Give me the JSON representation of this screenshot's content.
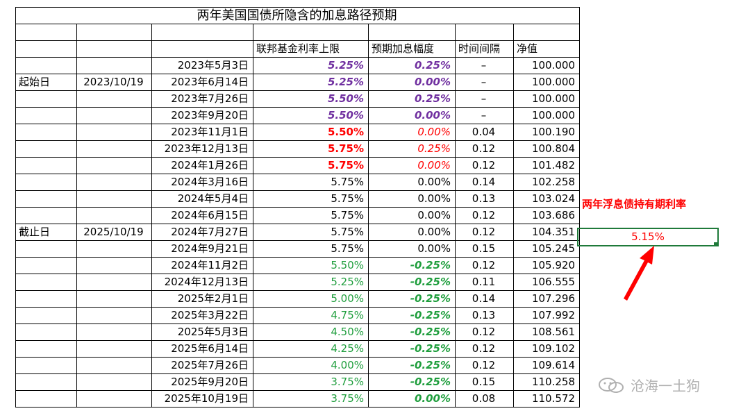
{
  "title": "两年美国国债所隐含的加息路径预期",
  "headers": [
    "联邦基金利率上限",
    "预期加息幅度",
    "时间间隔",
    "净值"
  ],
  "start_label": "起始日",
  "start_date": "2023/10/19",
  "end_label": "截止日",
  "end_date": "2025/10/19",
  "rows": [
    {
      "date": "2023年5月3日",
      "rate": "5.25%",
      "change": "0.25%",
      "interval": "–",
      "nav": "100.000",
      "rate_style": "purple",
      "change_style": "purple"
    },
    {
      "date": "2023年6月14日",
      "rate": "5.25%",
      "change": "0.00%",
      "interval": "–",
      "nav": "100.000",
      "rate_style": "purple",
      "change_style": "purple"
    },
    {
      "date": "2023年7月26日",
      "rate": "5.50%",
      "change": "0.25%",
      "interval": "–",
      "nav": "100.000",
      "rate_style": "purple",
      "change_style": "purple"
    },
    {
      "date": "2023年9月20日",
      "rate": "5.50%",
      "change": "0.00%",
      "interval": "–",
      "nav": "100.000",
      "rate_style": "purple",
      "change_style": "purple"
    },
    {
      "date": "2023年11月1日",
      "rate": "5.50%",
      "change": "0.00%",
      "interval": "0.04",
      "nav": "100.190",
      "rate_style": "red",
      "change_style": "redi"
    },
    {
      "date": "2023年12月13日",
      "rate": "5.75%",
      "change": "0.25%",
      "interval": "0.12",
      "nav": "100.804",
      "rate_style": "red",
      "change_style": "redi"
    },
    {
      "date": "2024年1月26日",
      "rate": "5.75%",
      "change": "0.00%",
      "interval": "0.12",
      "nav": "101.482",
      "rate_style": "red",
      "change_style": "redi"
    },
    {
      "date": "2024年3月16日",
      "rate": "5.75%",
      "change": "0.00%",
      "interval": "0.14",
      "nav": "102.258",
      "rate_style": "",
      "change_style": ""
    },
    {
      "date": "2024年5月4日",
      "rate": "5.75%",
      "change": "0.00%",
      "interval": "0.13",
      "nav": "103.024",
      "rate_style": "",
      "change_style": ""
    },
    {
      "date": "2024年6月15日",
      "rate": "5.75%",
      "change": "0.00%",
      "interval": "0.12",
      "nav": "103.686",
      "rate_style": "",
      "change_style": ""
    },
    {
      "date": "2024年7月27日",
      "rate": "5.75%",
      "change": "0.00%",
      "interval": "0.12",
      "nav": "104.351",
      "rate_style": "",
      "change_style": ""
    },
    {
      "date": "2024年9月21日",
      "rate": "5.75%",
      "change": "0.00%",
      "interval": "0.15",
      "nav": "105.245",
      "rate_style": "",
      "change_style": ""
    },
    {
      "date": "2024年11月2日",
      "rate": "5.50%",
      "change": "-0.25%",
      "interval": "0.12",
      "nav": "105.920",
      "rate_style": "green",
      "change_style": "greeni"
    },
    {
      "date": "2024年12月13日",
      "rate": "5.25%",
      "change": "-0.25%",
      "interval": "0.11",
      "nav": "106.555",
      "rate_style": "green",
      "change_style": "greeni"
    },
    {
      "date": "2025年2月1日",
      "rate": "5.00%",
      "change": "-0.25%",
      "interval": "0.14",
      "nav": "107.296",
      "rate_style": "green",
      "change_style": "greeni"
    },
    {
      "date": "2025年3月22日",
      "rate": "4.75%",
      "change": "-0.25%",
      "interval": "0.13",
      "nav": "107.992",
      "rate_style": "green",
      "change_style": "greeni"
    },
    {
      "date": "2025年5月3日",
      "rate": "4.50%",
      "change": "-0.25%",
      "interval": "0.12",
      "nav": "108.561",
      "rate_style": "green",
      "change_style": "greeni"
    },
    {
      "date": "2025年6月14日",
      "rate": "4.25%",
      "change": "-0.25%",
      "interval": "0.12",
      "nav": "109.102",
      "rate_style": "green",
      "change_style": "greeni"
    },
    {
      "date": "2025年7月26日",
      "rate": "4.00%",
      "change": "-0.25%",
      "interval": "0.12",
      "nav": "109.614",
      "rate_style": "green",
      "change_style": "greeni"
    },
    {
      "date": "2025年9月20日",
      "rate": "3.75%",
      "change": "-0.25%",
      "interval": "0.15",
      "nav": "110.258",
      "rate_style": "green",
      "change_style": "greeni"
    },
    {
      "date": "2025年10月19日",
      "rate": "3.75%",
      "change": "0.00%",
      "interval": "0.08",
      "nav": "110.572",
      "rate_style": "green",
      "change_style": "greeni"
    }
  ],
  "side_label": "两年浮息债持有期利率",
  "side_value": "5.15%",
  "watermark": "沧海一土狗",
  "colors": {
    "purple": "#7030a0",
    "red": "#ff0000",
    "green": "#1f9e3d",
    "selection": "#1f7a3a"
  },
  "icons": {
    "arrow": "red-arrow-icon",
    "watermark": "wechat-icon"
  }
}
